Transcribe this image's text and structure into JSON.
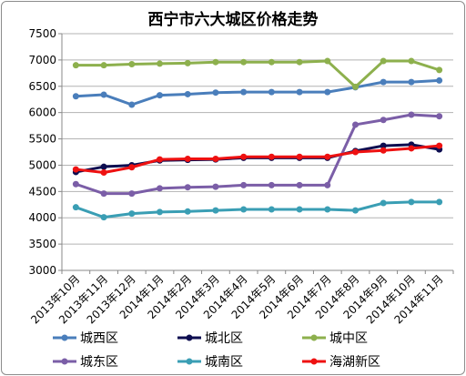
{
  "chart_data": {
    "type": "line",
    "title": "西宁市六大城区价格走势",
    "categories": [
      "2013年10月",
      "2013年11月",
      "2013年12月",
      "2014年1月",
      "2014年2月",
      "2014年3月",
      "2014年4月",
      "2014年5月",
      "2014年6月",
      "2014年7月",
      "2014年8月",
      "2014年9月",
      "2014年10月",
      "2014年11月"
    ],
    "ylim": [
      3000,
      7500
    ],
    "yticks": [
      3000,
      3500,
      4000,
      4500,
      5000,
      5500,
      6000,
      6500,
      7000,
      7500
    ],
    "grid": true,
    "legend_position": "bottom",
    "series": [
      {
        "name": "城西区",
        "color": "#4a7ebb",
        "values": [
          6310,
          6340,
          6150,
          6330,
          6350,
          6380,
          6390,
          6390,
          6390,
          6390,
          6480,
          6580,
          6580,
          6610
        ]
      },
      {
        "name": "城北区",
        "color": "#0d0d50",
        "values": [
          4870,
          4970,
          5000,
          5090,
          5100,
          5110,
          5140,
          5140,
          5140,
          5140,
          5270,
          5370,
          5390,
          5300
        ]
      },
      {
        "name": "城中区",
        "color": "#8db04d",
        "values": [
          6900,
          6900,
          6920,
          6930,
          6940,
          6960,
          6960,
          6960,
          6960,
          6980,
          6490,
          6980,
          6980,
          6810
        ]
      },
      {
        "name": "城东区",
        "color": "#7b5ea7",
        "values": [
          4640,
          4460,
          4460,
          4560,
          4580,
          4590,
          4620,
          4620,
          4620,
          4620,
          5770,
          5860,
          5960,
          5930
        ]
      },
      {
        "name": "城南区",
        "color": "#3a9eb4",
        "values": [
          4200,
          4010,
          4080,
          4110,
          4120,
          4140,
          4160,
          4160,
          4160,
          4160,
          4140,
          4280,
          4300,
          4300
        ]
      },
      {
        "name": "海湖新区",
        "color": "#ee1111",
        "values": [
          4920,
          4860,
          4960,
          5110,
          5120,
          5120,
          5160,
          5160,
          5160,
          5160,
          5250,
          5280,
          5320,
          5370
        ]
      }
    ]
  }
}
